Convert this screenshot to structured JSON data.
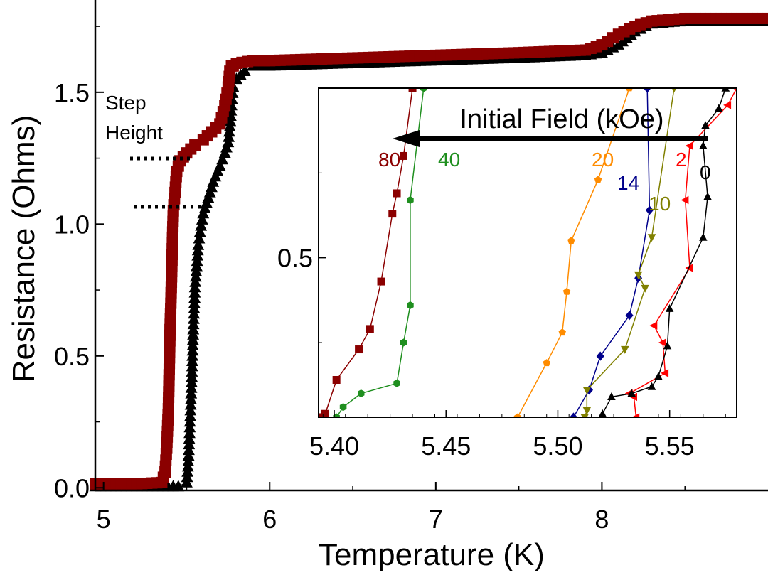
{
  "colors": {
    "zero_field": "#000000",
    "h80": "#8b0000",
    "h40": "#1f8f1f",
    "h20": "#ff8c00",
    "h14": "#00008b",
    "h10": "#808000",
    "h2": "#ff0000"
  },
  "chart_data": [
    {
      "type": "scatter",
      "title": "",
      "xlabel": "Temperature (K)",
      "ylabel": "Resistance (Ohms)",
      "xlim": [
        4.95,
        9.0
      ],
      "ylim": [
        -0.01,
        1.85
      ],
      "xticks": [
        5,
        6,
        7,
        8
      ],
      "xtick_labels": [
        "5",
        "6",
        "7",
        "8"
      ],
      "yticks": [
        0.0,
        0.5,
        1.0,
        1.5
      ],
      "ytick_labels": [
        "0.0",
        "0.5",
        "1.0",
        "1.5"
      ],
      "grid": false,
      "annotations": {
        "step_height_line1": "Step",
        "step_height_line2": "Height"
      },
      "series": [
        {
          "color": "#000000",
          "marker": "triangle-up",
          "x": [
            4.95,
            5.2,
            5.45,
            5.5,
            5.51,
            5.52,
            5.53,
            5.535,
            5.54,
            5.545,
            5.55,
            5.56,
            5.57,
            5.58,
            5.6,
            5.63,
            5.66,
            5.7,
            5.73,
            5.75,
            5.76,
            5.77,
            5.78,
            5.8,
            5.85,
            5.9,
            6.0,
            6.5,
            7.0,
            7.5,
            7.9,
            8.0,
            8.1,
            8.2,
            8.3,
            8.5,
            9.0
          ],
          "y": [
            0.005,
            0.005,
            0.005,
            0.02,
            0.1,
            0.25,
            0.4,
            0.5,
            0.6,
            0.68,
            0.76,
            0.84,
            0.92,
            0.97,
            1.04,
            1.1,
            1.16,
            1.22,
            1.27,
            1.31,
            1.37,
            1.45,
            1.52,
            1.55,
            1.58,
            1.6,
            1.6,
            1.61,
            1.62,
            1.63,
            1.64,
            1.65,
            1.68,
            1.73,
            1.76,
            1.77,
            1.77
          ]
        },
        {
          "color": "#8b0000",
          "marker": "square",
          "x": [
            4.95,
            5.2,
            5.35,
            5.37,
            5.38,
            5.39,
            5.395,
            5.4,
            5.405,
            5.41,
            5.415,
            5.42,
            5.43,
            5.44,
            5.46,
            5.5,
            5.55,
            5.6,
            5.65,
            5.7,
            5.73,
            5.75,
            5.76,
            5.77,
            5.78,
            5.8,
            5.9,
            6.0,
            6.5,
            7.0,
            7.5,
            7.9,
            8.0,
            8.1,
            8.2,
            8.3,
            8.5,
            9.0
          ],
          "y": [
            0.015,
            0.015,
            0.02,
            0.06,
            0.15,
            0.3,
            0.45,
            0.6,
            0.7,
            0.82,
            0.95,
            1.05,
            1.12,
            1.2,
            1.24,
            1.27,
            1.3,
            1.32,
            1.35,
            1.38,
            1.45,
            1.52,
            1.58,
            1.6,
            1.6,
            1.61,
            1.62,
            1.62,
            1.63,
            1.64,
            1.65,
            1.66,
            1.68,
            1.72,
            1.75,
            1.77,
            1.78,
            1.78
          ]
        }
      ]
    },
    {
      "type": "line",
      "title": "Initial Field (kOe)",
      "xlabel": "",
      "ylabel": "",
      "xlim": [
        5.393,
        5.58
      ],
      "ylim": [
        0.03,
        1.0
      ],
      "xticks": [
        5.4,
        5.45,
        5.5,
        5.55
      ],
      "xtick_labels": [
        "5.40",
        "5.45",
        "5.50",
        "5.55"
      ],
      "yticks": [
        0.5
      ],
      "ytick_labels": [
        "0.5"
      ],
      "grid": false,
      "series": [
        {
          "name": "80",
          "color": "#8b0000",
          "marker": "square",
          "x": [
            5.393,
            5.396,
            5.401,
            5.411,
            5.416,
            5.421,
            5.426,
            5.428,
            5.431,
            5.435
          ],
          "y": [
            0.03,
            0.04,
            0.14,
            0.23,
            0.29,
            0.43,
            0.63,
            0.69,
            0.8,
            1.0
          ]
        },
        {
          "name": "40",
          "color": "#1f8f1f",
          "marker": "hexagon",
          "x": [
            5.401,
            5.404,
            5.412,
            5.428,
            5.431,
            5.434,
            5.434,
            5.44
          ],
          "y": [
            0.03,
            0.06,
            0.1,
            0.13,
            0.25,
            0.36,
            0.67,
            1.0
          ]
        },
        {
          "name": "20",
          "color": "#ff8c00",
          "marker": "pentagon",
          "x": [
            5.482,
            5.495,
            5.502,
            5.504,
            5.506,
            5.518,
            5.532
          ],
          "y": [
            0.03,
            0.19,
            0.28,
            0.4,
            0.55,
            0.73,
            1.0
          ]
        },
        {
          "name": "14",
          "color": "#00008b",
          "marker": "diamond",
          "x": [
            5.507,
            5.514,
            5.519,
            5.532,
            5.536,
            5.541,
            5.54
          ],
          "y": [
            0.03,
            0.11,
            0.21,
            0.33,
            0.44,
            0.64,
            1.0
          ]
        },
        {
          "name": "10",
          "color": "#808000",
          "marker": "triangle-down",
          "x": [
            5.512,
            5.513,
            5.513,
            5.53,
            5.539,
            5.536,
            5.542,
            5.552
          ],
          "y": [
            0.03,
            0.05,
            0.11,
            0.23,
            0.41,
            0.45,
            0.56,
            1.0
          ]
        },
        {
          "name": "2",
          "color": "#ff0000",
          "marker": "triangle-left",
          "x": [
            5.535,
            5.534,
            5.532,
            5.548,
            5.547,
            5.543,
            5.559,
            5.557,
            5.559,
            5.576,
            5.58
          ],
          "y": [
            0.03,
            0.09,
            0.1,
            0.16,
            0.25,
            0.3,
            0.47,
            0.67,
            0.83,
            0.95,
            1.0
          ]
        },
        {
          "name": "0",
          "color": "#000000",
          "marker": "triangle-up",
          "x": [
            5.52,
            5.52,
            5.524,
            5.533,
            5.542,
            5.545,
            5.549,
            5.55,
            5.565,
            5.567,
            5.565,
            5.566,
            5.572,
            5.575
          ],
          "y": [
            0.03,
            0.04,
            0.09,
            0.1,
            0.12,
            0.15,
            0.24,
            0.35,
            0.56,
            0.68,
            0.83,
            0.89,
            0.94,
            1.0
          ]
        }
      ]
    }
  ]
}
